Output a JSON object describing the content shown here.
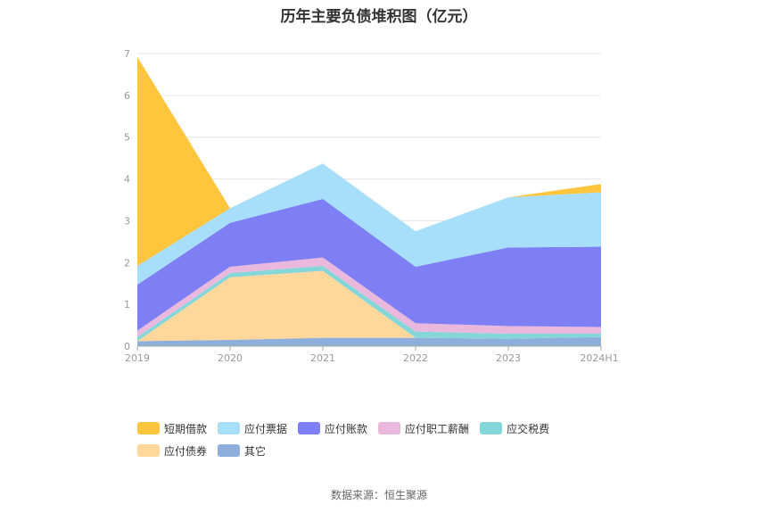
{
  "chart_data": {
    "type": "area",
    "stacked": true,
    "title": "历年主要负债堆积图（亿元）",
    "categories": [
      "2019",
      "2020",
      "2021",
      "2022",
      "2023",
      "2024H1"
    ],
    "ylim": [
      0,
      7
    ],
    "yticks": [
      "0",
      "1",
      "2",
      "3",
      "4",
      "5",
      "6",
      "7"
    ],
    "grid": true,
    "legend_position": "bottom",
    "series": [
      {
        "name": "其它",
        "color": "#8eaedc",
        "values": [
          0.12,
          0.15,
          0.2,
          0.2,
          0.18,
          0.22
        ]
      },
      {
        "name": "应付债券",
        "color": "#ffd79b",
        "values": [
          0.0,
          1.5,
          1.6,
          0.0,
          0.0,
          0.0
        ]
      },
      {
        "name": "应交税费",
        "color": "#84d6d9",
        "values": [
          0.1,
          0.1,
          0.12,
          0.15,
          0.12,
          0.08
        ]
      },
      {
        "name": "应付职工薪酬",
        "color": "#eab8dc",
        "values": [
          0.15,
          0.15,
          0.2,
          0.2,
          0.18,
          0.16
        ]
      },
      {
        "name": "应付账款",
        "color": "#7e7ff5",
        "values": [
          1.1,
          1.05,
          1.4,
          1.35,
          1.88,
          1.92
        ]
      },
      {
        "name": "应付票据",
        "color": "#a7def9",
        "values": [
          0.45,
          0.35,
          0.85,
          0.85,
          1.2,
          1.3
        ]
      },
      {
        "name": "短期借款",
        "color": "#ffc53d",
        "values": [
          5.0,
          0.0,
          0.0,
          0.0,
          0.0,
          0.2
        ]
      }
    ],
    "legend_order": [
      "短期借款",
      "应付票据",
      "应付账款",
      "应付职工薪酬",
      "应交税费",
      "应付债券",
      "其它"
    ]
  },
  "source_note": "数据来源：恒生聚源"
}
